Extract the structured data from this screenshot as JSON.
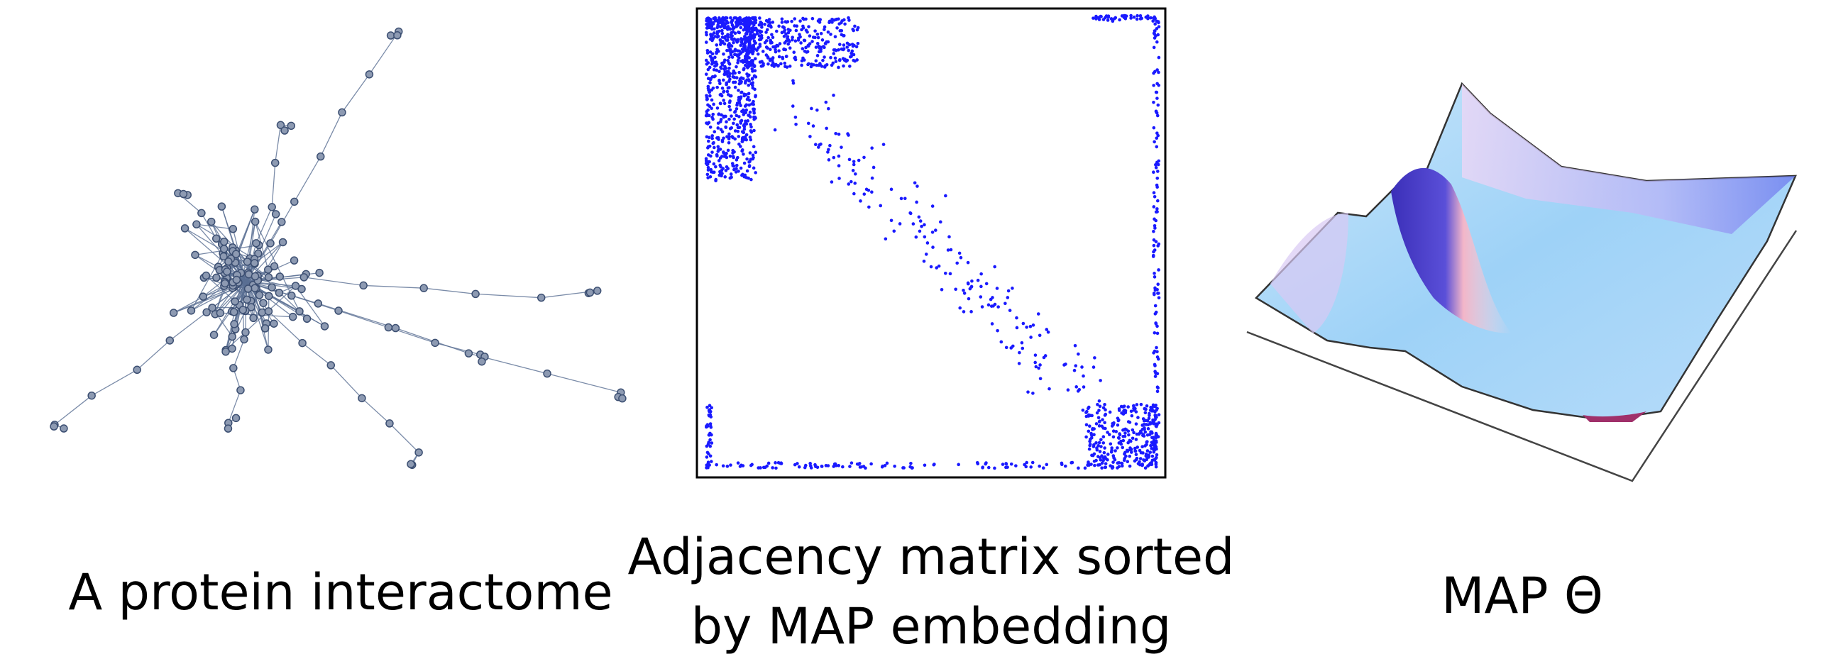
{
  "panels": [
    {
      "caption": [
        "A protein interactome"
      ]
    },
    {
      "caption": [
        "Adjacency matrix sorted",
        "by MAP embedding"
      ]
    },
    {
      "caption": [
        "MAP Θ"
      ]
    }
  ]
}
